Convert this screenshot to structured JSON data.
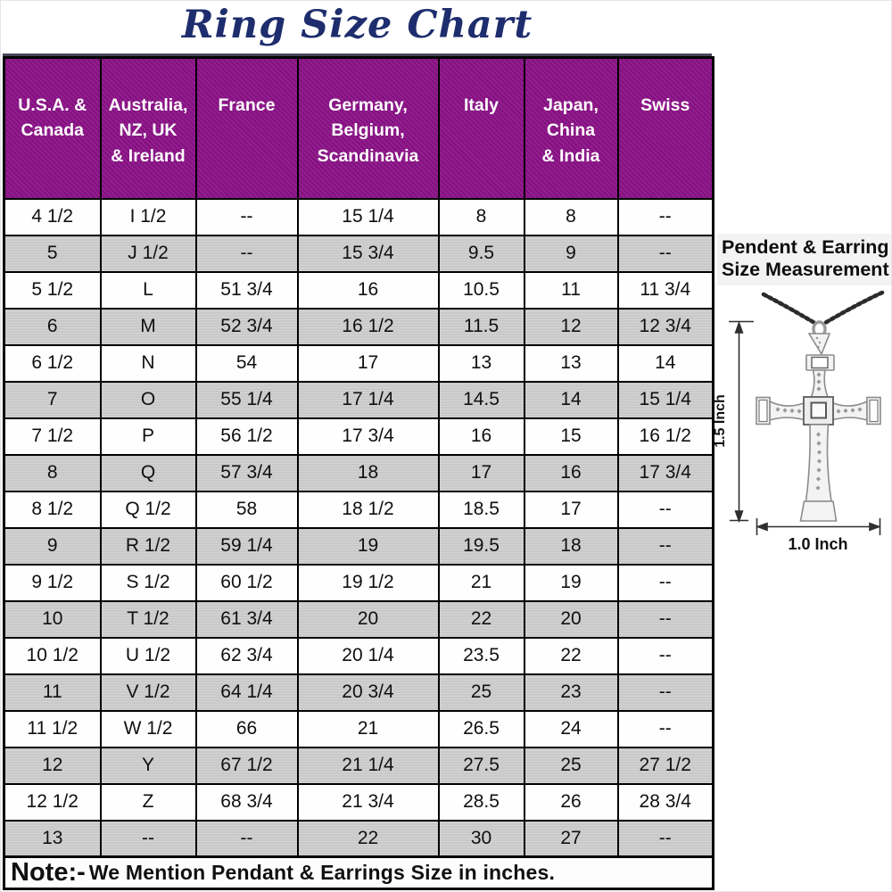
{
  "title": "Ring Size Chart",
  "colors": {
    "header_bg": "#8a1186",
    "header_text": "#ffffff",
    "alt_row_bg": "#c9c9c9",
    "title_color": "#1e2d6d",
    "border": "#000000"
  },
  "chart_data": {
    "type": "table",
    "title": "Ring Size Chart",
    "columns": [
      "U.S.A. & Canada",
      "Australia, NZ, UK & Ireland",
      "France",
      "Germany, Belgium, Scandinavia",
      "Italy",
      "Japan, China & India",
      "Swiss"
    ],
    "rows": [
      [
        "4 1/2",
        "I 1/2",
        "--",
        "15 1/4",
        "8",
        "8",
        "--"
      ],
      [
        "5",
        "J 1/2",
        "--",
        "15 3/4",
        "9.5",
        "9",
        "--"
      ],
      [
        "5 1/2",
        "L",
        "51 3/4",
        "16",
        "10.5",
        "11",
        "11 3/4"
      ],
      [
        "6",
        "M",
        "52 3/4",
        "16 1/2",
        "11.5",
        "12",
        "12 3/4"
      ],
      [
        "6 1/2",
        "N",
        "54",
        "17",
        "13",
        "13",
        "14"
      ],
      [
        "7",
        "O",
        "55 1/4",
        "17 1/4",
        "14.5",
        "14",
        "15 1/4"
      ],
      [
        "7 1/2",
        "P",
        "56 1/2",
        "17 3/4",
        "16",
        "15",
        "16 1/2"
      ],
      [
        "8",
        "Q",
        "57 3/4",
        "18",
        "17",
        "16",
        "17 3/4"
      ],
      [
        "8 1/2",
        "Q 1/2",
        "58",
        "18 1/2",
        "18.5",
        "17",
        "--"
      ],
      [
        "9",
        "R 1/2",
        "59 1/4",
        "19",
        "19.5",
        "18",
        "--"
      ],
      [
        "9 1/2",
        "S 1/2",
        "60 1/2",
        "19 1/2",
        "21",
        "19",
        "--"
      ],
      [
        "10",
        "T 1/2",
        "61 3/4",
        "20",
        "22",
        "20",
        "--"
      ],
      [
        "10 1/2",
        "U 1/2",
        "62 3/4",
        "20 1/4",
        "23.5",
        "22",
        "--"
      ],
      [
        "11",
        "V 1/2",
        "64 1/4",
        "20 3/4",
        "25",
        "23",
        "--"
      ],
      [
        "11 1/2",
        "W 1/2",
        "66",
        "21",
        "26.5",
        "24",
        "--"
      ],
      [
        "12",
        "Y",
        "67 1/2",
        "21 1/4",
        "27.5",
        "25",
        "27 1/2"
      ],
      [
        "12 1/2",
        "Z",
        "68 3/4",
        "21 3/4",
        "28.5",
        "26",
        "28 3/4"
      ],
      [
        "13",
        "--",
        "--",
        "22",
        "30",
        "27",
        "--"
      ]
    ],
    "note": "Note:- We Mention Pendant & Earrings Size in inches."
  },
  "table": {
    "columns_display": [
      "U.S.A. &\nCanada",
      "Australia,\nNZ, UK\n& Ireland",
      "France",
      "Germany,\nBelgium,\nScandinavia",
      "Italy",
      "Japan,\nChina\n& India",
      "Swiss"
    ]
  },
  "note": {
    "label": "Note:-",
    "text": "We Mention Pendant & Earrings Size in inches."
  },
  "panel": {
    "heading_line1": "Pendent & Earring",
    "heading_line2": "Size Measurement",
    "height_label": "1.5 Inch",
    "width_label": "1.0 Inch"
  }
}
